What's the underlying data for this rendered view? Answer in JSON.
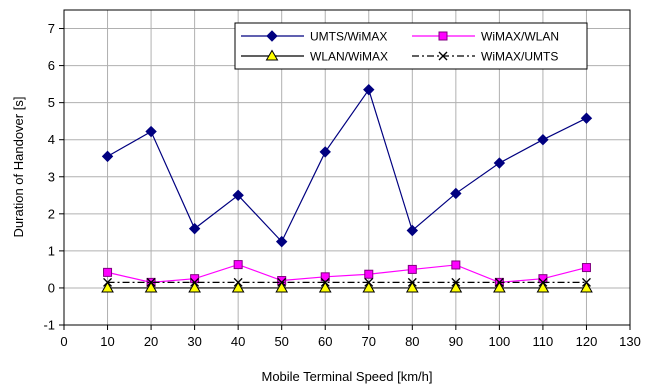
{
  "chart_data": {
    "type": "line",
    "xlabel": "Mobile Terminal Speed [km/h]",
    "ylabel": "Duration of Handover [s]",
    "xlim": [
      0,
      130
    ],
    "ylim": [
      -1,
      7.5
    ],
    "x_ticks": [
      0,
      10,
      20,
      30,
      40,
      50,
      60,
      70,
      80,
      90,
      100,
      110,
      120,
      130
    ],
    "y_ticks": [
      -1,
      0,
      1,
      2,
      3,
      4,
      5,
      6,
      7
    ],
    "grid": "both",
    "legend_position": "top-right",
    "x": [
      10,
      20,
      30,
      40,
      50,
      60,
      70,
      80,
      90,
      100,
      110,
      120
    ],
    "series": [
      {
        "name": "UMTS/WiMAX",
        "values": [
          3.55,
          4.22,
          1.6,
          2.5,
          1.25,
          3.67,
          5.35,
          1.55,
          2.55,
          3.37,
          4.0,
          4.58
        ],
        "color": "#000080",
        "marker": "diamond",
        "line_style": "solid"
      },
      {
        "name": "WiMAX/WLAN",
        "values": [
          0.42,
          0.15,
          0.25,
          0.63,
          0.2,
          0.3,
          0.37,
          0.5,
          0.62,
          0.15,
          0.25,
          0.55
        ],
        "color": "#ff00ff",
        "marker": "square",
        "line_style": "solid"
      },
      {
        "name": "WLAN/WiMAX",
        "values": [
          0.0,
          0.0,
          0.0,
          0.0,
          0.0,
          0.0,
          0.0,
          0.0,
          0.0,
          0.0,
          0.0,
          0.0
        ],
        "color": "#000000",
        "marker": "triangle",
        "marker_fill": "#ffff00",
        "line_style": "solid"
      },
      {
        "name": "WiMAX/UMTS",
        "values": [
          0.15,
          0.15,
          0.15,
          0.15,
          0.15,
          0.15,
          0.15,
          0.15,
          0.15,
          0.15,
          0.15,
          0.15
        ],
        "color": "#000000",
        "marker": "x",
        "line_style": "dash-dot"
      }
    ]
  }
}
